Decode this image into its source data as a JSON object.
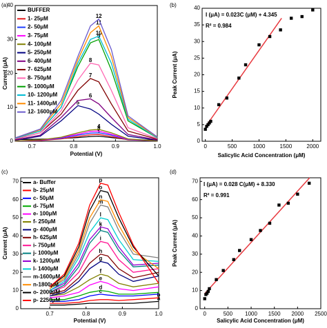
{
  "chart_data": [
    {
      "type": "line",
      "panel": "(a)",
      "xlabel": "Potential (V)",
      "ylabel": "Current (μA)",
      "x": [
        0.66,
        0.72,
        0.77,
        0.81,
        0.84,
        0.86,
        0.89,
        0.93,
        1.0
      ],
      "xlim": [
        0.66,
        1.0
      ],
      "xticks": [
        0.7,
        0.8,
        0.9,
        {
          "value": 1.0,
          "label": "1.0"
        }
      ],
      "ylim": [
        0,
        40
      ],
      "yticks": [
        0,
        10,
        20,
        30,
        40
      ],
      "series": [
        {
          "name": "BUFFER",
          "color": "#000000",
          "values": [
            0.5,
            0.6,
            0.8,
            1.1,
            1.4,
            1.5,
            1.1,
            0.5,
            0.3
          ]
        },
        {
          "name": "1- 25μM",
          "label": "1",
          "color": "#e41a1c",
          "values": [
            0.1,
            0.2,
            0.7,
            1.4,
            1.9,
            2,
            1.4,
            0.4,
            0.1
          ]
        },
        {
          "name": "2- 50μM",
          "label": "2",
          "color": "#1f3fff",
          "values": [
            0.1,
            0.3,
            0.9,
            1.8,
            2.4,
            2.5,
            1.8,
            0.5,
            0.1
          ]
        },
        {
          "name": "3- 75μM",
          "label": "3",
          "color": "#ff00ff",
          "values": [
            0.1,
            0.3,
            1.1,
            2.1,
            2.9,
            3,
            2.1,
            0.6,
            0.1
          ]
        },
        {
          "name": "4- 100μM",
          "label": "4",
          "color": "#808000",
          "values": [
            0.1,
            0.4,
            1.2,
            2.5,
            3.3,
            3.5,
            2.5,
            0.7,
            0.1
          ]
        },
        {
          "name": "5- 250μM",
          "label": "5",
          "color": "#000080",
          "values": [
            0.3,
            1.5,
            6,
            10.5,
            9.5,
            8,
            5,
            1.5,
            0.3
          ]
        },
        {
          "name": "6- 400μM",
          "label": "6",
          "color": "#800080",
          "values": [
            0.4,
            1.8,
            7,
            12,
            12.5,
            11,
            7,
            2,
            0.4
          ]
        },
        {
          "name": "7- 625μM",
          "label": "7",
          "color": "#800000",
          "values": [
            0.6,
            2.5,
            8,
            15,
            18.5,
            17.5,
            11,
            3,
            0.6
          ]
        },
        {
          "name": "8- 750μM",
          "label": "8",
          "color": "#ff69b4",
          "values": [
            0.7,
            2.5,
            9,
            18,
            23,
            22.5,
            15,
            4,
            0.8
          ]
        },
        {
          "name": "9- 1000μM",
          "label": "9",
          "color": "#00a000",
          "values": [
            0.9,
            3,
            10,
            22,
            29,
            30,
            21,
            6,
            1
          ]
        },
        {
          "name": "10- 1200μM",
          "label": "10",
          "color": "#00bcd4",
          "values": [
            0.9,
            3,
            10,
            23,
            30,
            31,
            23,
            6.5,
            1
          ]
        },
        {
          "name": "11- 1400μM",
          "label": "11",
          "color": "#ff8c00",
          "values": [
            1,
            3.4,
            11,
            24,
            32,
            34,
            25,
            7,
            1.2
          ]
        },
        {
          "name": "12- 1600μM",
          "label": "12",
          "color": "#6a5acd",
          "values": [
            1,
            3.6,
            12,
            25,
            34,
            36,
            27,
            7.5,
            1.3
          ]
        }
      ]
    },
    {
      "type": "scatter",
      "panel": "(b)",
      "xlabel": "Salicylic Acid Concentration (μM)",
      "ylabel": "Peak Current (μA)",
      "equation": "I (μA) = 0.023C (μM) + 4.345",
      "r2": "R² = 0.984",
      "xlim": [
        -60,
        2150
      ],
      "xticks": [
        0,
        500,
        1000,
        1500,
        2000
      ],
      "ylim": [
        0,
        40
      ],
      "yticks": [
        0,
        5,
        10,
        15,
        20,
        25,
        30,
        35,
        40
      ],
      "color": "#000000",
      "fit_color": "#e8393f",
      "x": [
        0,
        25,
        50,
        75,
        100,
        250,
        400,
        625,
        750,
        1000,
        1200,
        1400,
        1600,
        1800,
        2000
      ],
      "values": [
        3.6,
        4.5,
        5,
        5.5,
        6,
        11,
        13,
        19,
        23,
        29,
        31.5,
        33.5,
        37,
        37.5,
        39.5
      ],
      "fit": {
        "x": [
          0,
          1420
        ],
        "y": [
          4.3,
          37
        ]
      }
    },
    {
      "type": "line",
      "panel": "(c)",
      "xlabel": "Potential (V)",
      "ylabel": "Current (μA)",
      "x": [
        0.7,
        0.74,
        0.78,
        0.81,
        0.84,
        0.86,
        0.89,
        0.93,
        1.0
      ],
      "xlim": [
        0.62,
        1.0
      ],
      "xticks": [
        0.7,
        0.8,
        0.9,
        {
          "value": 1.0,
          "label": "1.0"
        }
      ],
      "ylim": [
        0,
        72
      ],
      "yticks": [
        0,
        10,
        20,
        30,
        40,
        50,
        60,
        70
      ],
      "series": [
        {
          "name": "a- Buffer",
          "label": "a",
          "color": "#000000",
          "values": [
            2,
            2,
            2.5,
            3,
            3,
            3,
            3,
            3,
            4
          ]
        },
        {
          "name": "b- 25μM",
          "label": "b",
          "color": "#ff0000",
          "values": [
            3,
            3,
            3.5,
            4.5,
            5,
            5,
            4.5,
            5,
            6
          ]
        },
        {
          "name": "c- 50μM",
          "label": "c",
          "color": "#0000ff",
          "values": [
            4,
            4,
            5,
            7,
            8,
            7.5,
            7,
            7,
            8
          ]
        },
        {
          "name": "d- 75μM",
          "label": "d",
          "color": "#00aa00",
          "values": [
            5,
            5,
            7,
            9,
            10,
            9.5,
            8,
            8,
            9
          ]
        },
        {
          "name": "e- 100μM",
          "label": "e",
          "color": "#ff00ff",
          "values": [
            6,
            7,
            9,
            13,
            15,
            14,
            11,
            10,
            12
          ]
        },
        {
          "name": "f- 250μM",
          "label": "f",
          "color": "#808000",
          "values": [
            7,
            8,
            12,
            16,
            19,
            18,
            14,
            12,
            14
          ]
        },
        {
          "name": "g- 400μM",
          "label": "g",
          "color": "#000080",
          "values": [
            7,
            9,
            15,
            22,
            26,
            25,
            19,
            15,
            18
          ]
        },
        {
          "name": "h- 625μM",
          "label": "h",
          "color": "#800000",
          "values": [
            8,
            10,
            17,
            25,
            30,
            29,
            22,
            17,
            20
          ]
        },
        {
          "name": "i- 750μM",
          "label": "i",
          "color": "#ff1493",
          "values": [
            9,
            12,
            20,
            31,
            37,
            36,
            27,
            20,
            22
          ]
        },
        {
          "name": "j- 1000μM",
          "label": "j",
          "color": "#008080",
          "values": [
            9,
            13,
            23,
            36,
            43,
            42,
            32,
            23,
            24
          ]
        },
        {
          "name": "k- 1200μM",
          "label": "k",
          "color": "#9400d3",
          "values": [
            10,
            14,
            25,
            38,
            45,
            44,
            34,
            24,
            25
          ]
        },
        {
          "name": "l- 1400μM",
          "label": "l",
          "color": "#00ced1",
          "values": [
            10,
            15,
            28,
            42,
            50,
            49,
            38,
            27,
            26
          ]
        },
        {
          "name": "m-1600μM",
          "label": "m",
          "color": "#808080",
          "values": [
            11,
            16,
            30,
            47,
            57,
            56,
            43,
            30,
            28
          ]
        },
        {
          "name": "n-1800μM",
          "label": "n",
          "color": "#ff8c00",
          "values": [
            11,
            17,
            32,
            50,
            60,
            59,
            46,
            32,
            22
          ]
        },
        {
          "name": "o- 2000μM",
          "label": "o",
          "color": "#000000",
          "values": [
            12,
            18,
            34,
            54,
            65,
            64,
            50,
            34,
            18
          ]
        },
        {
          "name": "p- 2250μM",
          "label": "p",
          "color": "#ff0000",
          "values": [
            12,
            19,
            36,
            57,
            69,
            68,
            53,
            35,
            14
          ]
        }
      ]
    },
    {
      "type": "scatter",
      "panel": "(d)",
      "xlabel": "Salicylic Acid Concentration (μM)",
      "ylabel": "Peak Current (μA)",
      "equation": "I (μA) = 0.028 C(μM) + 8.330",
      "r2": "R² = 0.991",
      "xlim": [
        -100,
        2500
      ],
      "xticks": [
        0,
        500,
        1000,
        1500,
        2000,
        2500
      ],
      "ylim": [
        0,
        72
      ],
      "yticks": [
        0,
        10,
        20,
        30,
        40,
        50,
        60,
        70
      ],
      "color": "#000000",
      "fit_color": "#e8393f",
      "x": [
        0,
        25,
        50,
        75,
        100,
        250,
        400,
        625,
        750,
        1000,
        1200,
        1400,
        1600,
        1800,
        2000,
        2250
      ],
      "values": [
        5.5,
        7.8,
        8.5,
        9.5,
        11,
        16,
        21,
        27,
        32,
        38,
        43,
        47,
        57,
        58,
        63,
        69
      ],
      "fit": {
        "x": [
          0,
          2260
        ],
        "y": [
          8.3,
          72
        ]
      }
    }
  ]
}
